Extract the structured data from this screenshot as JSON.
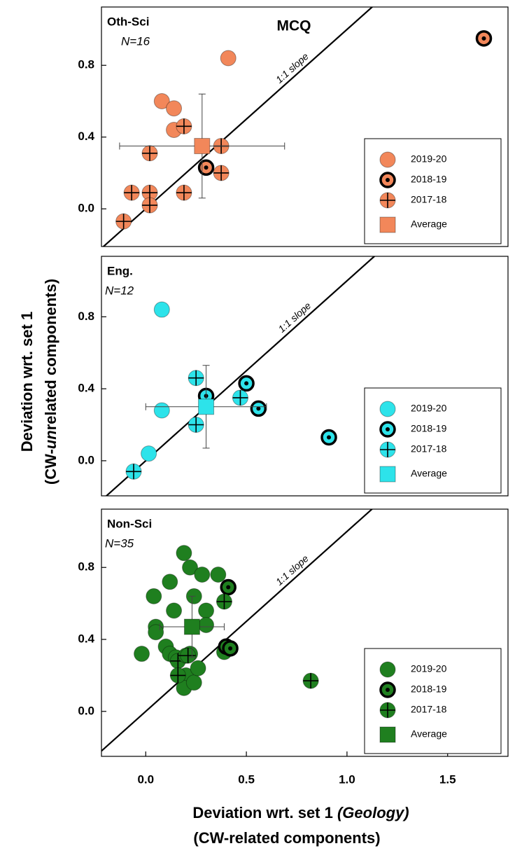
{
  "axes": {
    "y_label": [
      "Deviation wrt. set 1",
      "(CW-",
      "un",
      "related components)"
    ],
    "x_label": [
      "Deviation wrt. set 1 ",
      "(Geology)",
      "(CW-related components)"
    ]
  },
  "chart_data": [
    {
      "type": "scatter",
      "title": "MCQ",
      "panel_label": "Oth-Sci",
      "n_label": "N=16",
      "color": "#f2875a",
      "xlim": [
        -0.22,
        1.8
      ],
      "ylim": [
        -0.21,
        1.125
      ],
      "yticks": [
        {
          "value": 0,
          "label": "0.0"
        },
        {
          "value": 0.4,
          "label": "0.4"
        },
        {
          "value": 0.8,
          "label": "0.8"
        }
      ],
      "reference_line": "1:1",
      "reference_label": "1:1 slope",
      "legend": "lower right",
      "series": [
        {
          "name": "2019-20",
          "marker": "circle",
          "x": [
            0.08,
            0.14,
            0.14,
            0.41
          ],
          "y": [
            0.6,
            0.56,
            0.44,
            0.84
          ]
        },
        {
          "name": "2018-19",
          "marker": "circle-dot",
          "x": [
            1.68,
            0.3
          ],
          "y": [
            0.95,
            0.23
          ]
        },
        {
          "name": "2017-18",
          "marker": "circle-plus",
          "x": [
            0.19,
            0.02,
            0.375,
            0.375,
            -0.07,
            0.02,
            0.02,
            0.19,
            -0.11
          ],
          "y": [
            0.46,
            0.31,
            0.35,
            0.2,
            0.09,
            0.09,
            0.02,
            0.09,
            -0.07
          ]
        },
        {
          "name": "Average",
          "marker": "square",
          "x": [
            0.28
          ],
          "y": [
            0.35
          ],
          "x_error": [
            0.41
          ],
          "y_error": [
            0.29
          ]
        }
      ]
    },
    {
      "type": "scatter",
      "panel_label": "Eng.",
      "n_label": "N=12",
      "color": "#2de3ea",
      "xlim": [
        -0.22,
        1.8
      ],
      "ylim": [
        -0.195,
        1.136
      ],
      "yticks": [
        {
          "value": 0,
          "label": "0.0"
        },
        {
          "value": 0.4,
          "label": "0.4"
        },
        {
          "value": 0.8,
          "label": "0.8"
        }
      ],
      "reference_line": "1:1",
      "reference_label": "1:1 slope",
      "legend": "lower right",
      "series": [
        {
          "name": "2019-20",
          "marker": "circle",
          "x": [
            0.08,
            0.08,
            0.015
          ],
          "y": [
            0.84,
            0.28,
            0.04
          ]
        },
        {
          "name": "2018-19",
          "marker": "circle-dot",
          "x": [
            0.3,
            0.5,
            0.56,
            0.91
          ],
          "y": [
            0.36,
            0.43,
            0.29,
            0.13
          ]
        },
        {
          "name": "2017-18",
          "marker": "circle-plus",
          "x": [
            0.25,
            0.25,
            0.47,
            -0.06
          ],
          "y": [
            0.46,
            0.2,
            0.35,
            -0.06
          ]
        },
        {
          "name": "Average",
          "marker": "square",
          "x": [
            0.3
          ],
          "y": [
            0.3
          ],
          "x_error": [
            0.3
          ],
          "y_error": [
            0.23
          ]
        }
      ]
    },
    {
      "type": "scatter",
      "panel_label": "Non-Sci",
      "n_label": "N=35",
      "color": "#1f7f1f",
      "xlim": [
        -0.22,
        1.8
      ],
      "ylim": [
        -0.25,
        1.124
      ],
      "xticks": [
        {
          "value": 0,
          "label": "0.0"
        },
        {
          "value": 0.5,
          "label": "0.5"
        },
        {
          "value": 1,
          "label": "1.0"
        },
        {
          "value": 1.5,
          "label": "1.5"
        }
      ],
      "yticks": [
        {
          "value": 0,
          "label": "0.0"
        },
        {
          "value": 0.4,
          "label": "0.4"
        },
        {
          "value": 0.8,
          "label": "0.8"
        }
      ],
      "reference_line": "1:1",
      "reference_label": "1:1 slope",
      "legend": "lower right",
      "series": [
        {
          "name": "2019-20",
          "marker": "circle",
          "x": [
            -0.02,
            0.04,
            0.05,
            0.05,
            0.1,
            0.12,
            0.14,
            0.19,
            0.22,
            0.28,
            0.36,
            0.24,
            0.3,
            0.3,
            0.12,
            0.15,
            0.2,
            0.19,
            0.24,
            0.26,
            0.22,
            0.39
          ],
          "y": [
            0.32,
            0.64,
            0.47,
            0.44,
            0.36,
            0.72,
            0.56,
            0.88,
            0.8,
            0.76,
            0.76,
            0.64,
            0.56,
            0.48,
            0.32,
            0.3,
            0.2,
            0.13,
            0.16,
            0.24,
            0.32,
            0.33
          ]
        },
        {
          "name": "2018-19",
          "marker": "circle-dot",
          "x": [
            0.41,
            0.4,
            0.42
          ],
          "y": [
            0.69,
            0.36,
            0.35
          ]
        },
        {
          "name": "2017-18",
          "marker": "circle-plus",
          "x": [
            0.39,
            0.16,
            0.16,
            0.2,
            0.21,
            0.82
          ],
          "y": [
            0.61,
            0.28,
            0.2,
            0.31,
            0.31,
            0.17
          ]
        },
        {
          "name": "Average",
          "marker": "square",
          "x": [
            0.23
          ],
          "y": [
            0.47
          ],
          "x_error": [
            0.16
          ],
          "y_error": [
            0.17
          ]
        }
      ]
    }
  ]
}
